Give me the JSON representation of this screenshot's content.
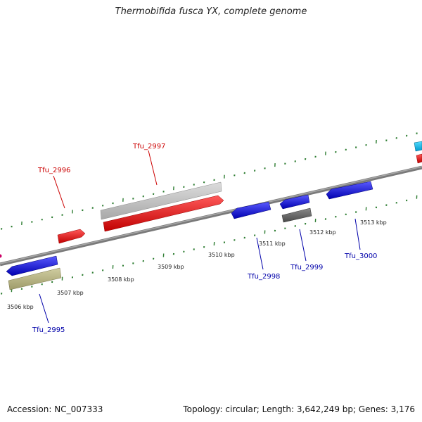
{
  "title": "Thermobifida fusca YX, complete genome",
  "accession_text": "Accession: NC_007333",
  "summary_text": "Topology: circular; Length: 3,642,249 bp; Genes: 3,176",
  "colors": {
    "backbone": "#888888",
    "tick": "#2e7d32",
    "forward_label": "#cc0000",
    "reverse_label": "#0000aa"
  },
  "ticks": [
    "3506 kbp",
    "3507 kbp",
    "3508 kbp",
    "3509 kbp",
    "3510 kbp",
    "3511 kbp",
    "3512 kbp",
    "3513 kbp"
  ],
  "genes": [
    {
      "name": "Tfu_2995",
      "strand": "reverse",
      "color": "#1a1ae6"
    },
    {
      "name": "Tfu_2996",
      "strand": "forward",
      "color": "#ee1111"
    },
    {
      "name": "Tfu_2997",
      "strand": "forward",
      "color": "#ee1111"
    },
    {
      "name": "Tfu_2998",
      "strand": "reverse",
      "color": "#1a1ae6"
    },
    {
      "name": "Tfu_2999",
      "strand": "reverse",
      "color": "#1a1ae6"
    },
    {
      "name": "Tfu_3000",
      "strand": "reverse",
      "color": "#1a1ae6"
    }
  ],
  "features": [
    {
      "kind": "misc",
      "color": "#b8b58a"
    },
    {
      "kind": "misc",
      "color": "#c0c0c0"
    },
    {
      "kind": "misc",
      "color": "#666666"
    },
    {
      "kind": "cds",
      "color": "#22ccee"
    }
  ]
}
